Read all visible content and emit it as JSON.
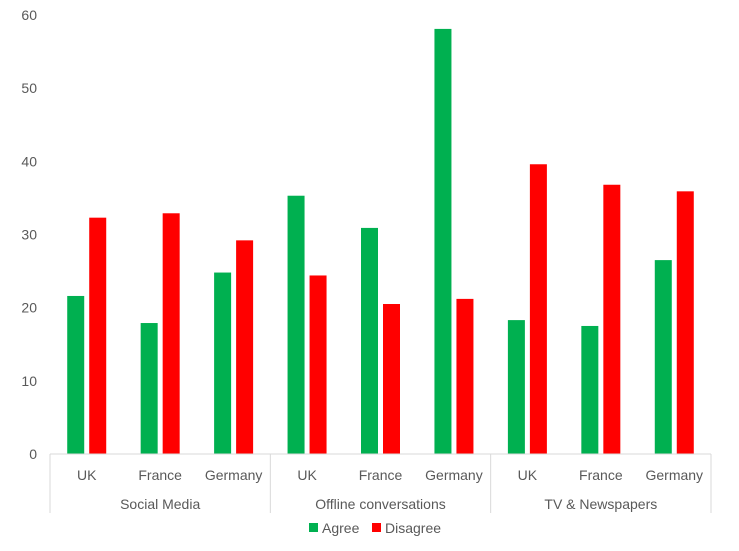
{
  "chart_data": {
    "type": "bar",
    "groups": [
      {
        "label": "Social Media",
        "categories": [
          "UK",
          "France",
          "Germany"
        ]
      },
      {
        "label": "Offline conversations",
        "categories": [
          "UK",
          "France",
          "Germany"
        ]
      },
      {
        "label": "TV & Newspapers",
        "categories": [
          "UK",
          "France",
          "Germany"
        ]
      }
    ],
    "series": [
      {
        "name": "Agree",
        "color": "#00b050",
        "values": [
          21.6,
          17.9,
          24.8,
          35.3,
          30.9,
          58.1,
          18.3,
          17.5,
          26.5
        ]
      },
      {
        "name": "Disagree",
        "color": "#ff0000",
        "values": [
          32.3,
          32.9,
          29.2,
          24.4,
          20.5,
          21.2,
          39.6,
          36.8,
          35.9
        ]
      }
    ],
    "ylim": [
      0,
      60
    ],
    "yticks": [
      0,
      10,
      20,
      30,
      40,
      50,
      60
    ],
    "grid": false,
    "legend": "bottom"
  }
}
